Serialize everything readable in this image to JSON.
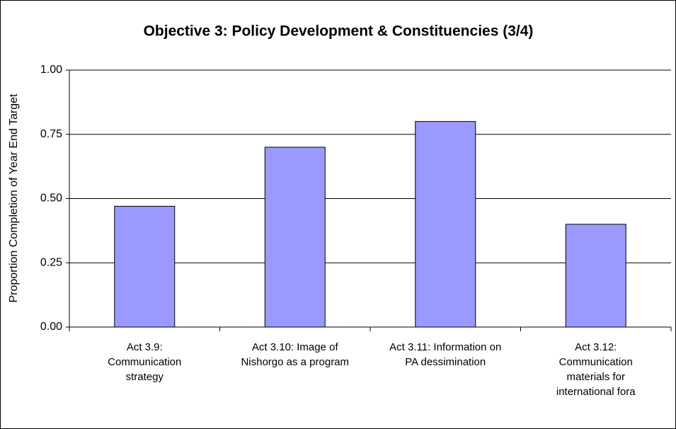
{
  "chart_data": {
    "type": "bar",
    "title": "Objective 3: Policy Development & Constituencies (3/4)",
    "y_label": "Proportion Completion of Year End Target",
    "categories": [
      "Act 3.9: Communication strategy",
      "Act 3.10: Image of Nishorgo as a program",
      "Act 3.11: Information on PA dessimination",
      "Act 3.12: Communication materials for international fora"
    ],
    "values": [
      0.47,
      0.7,
      0.8,
      0.4
    ],
    "color": "#9999ff",
    "ylim": [
      0,
      1
    ],
    "yticks": [
      {
        "value": 0,
        "label": "0.00"
      },
      {
        "value": 0.25,
        "label": "0.25"
      },
      {
        "value": 0.5,
        "label": "0.50"
      },
      {
        "value": 0.75,
        "label": "0.75"
      },
      {
        "value": 1,
        "label": "1.00"
      }
    ],
    "grid": true
  }
}
